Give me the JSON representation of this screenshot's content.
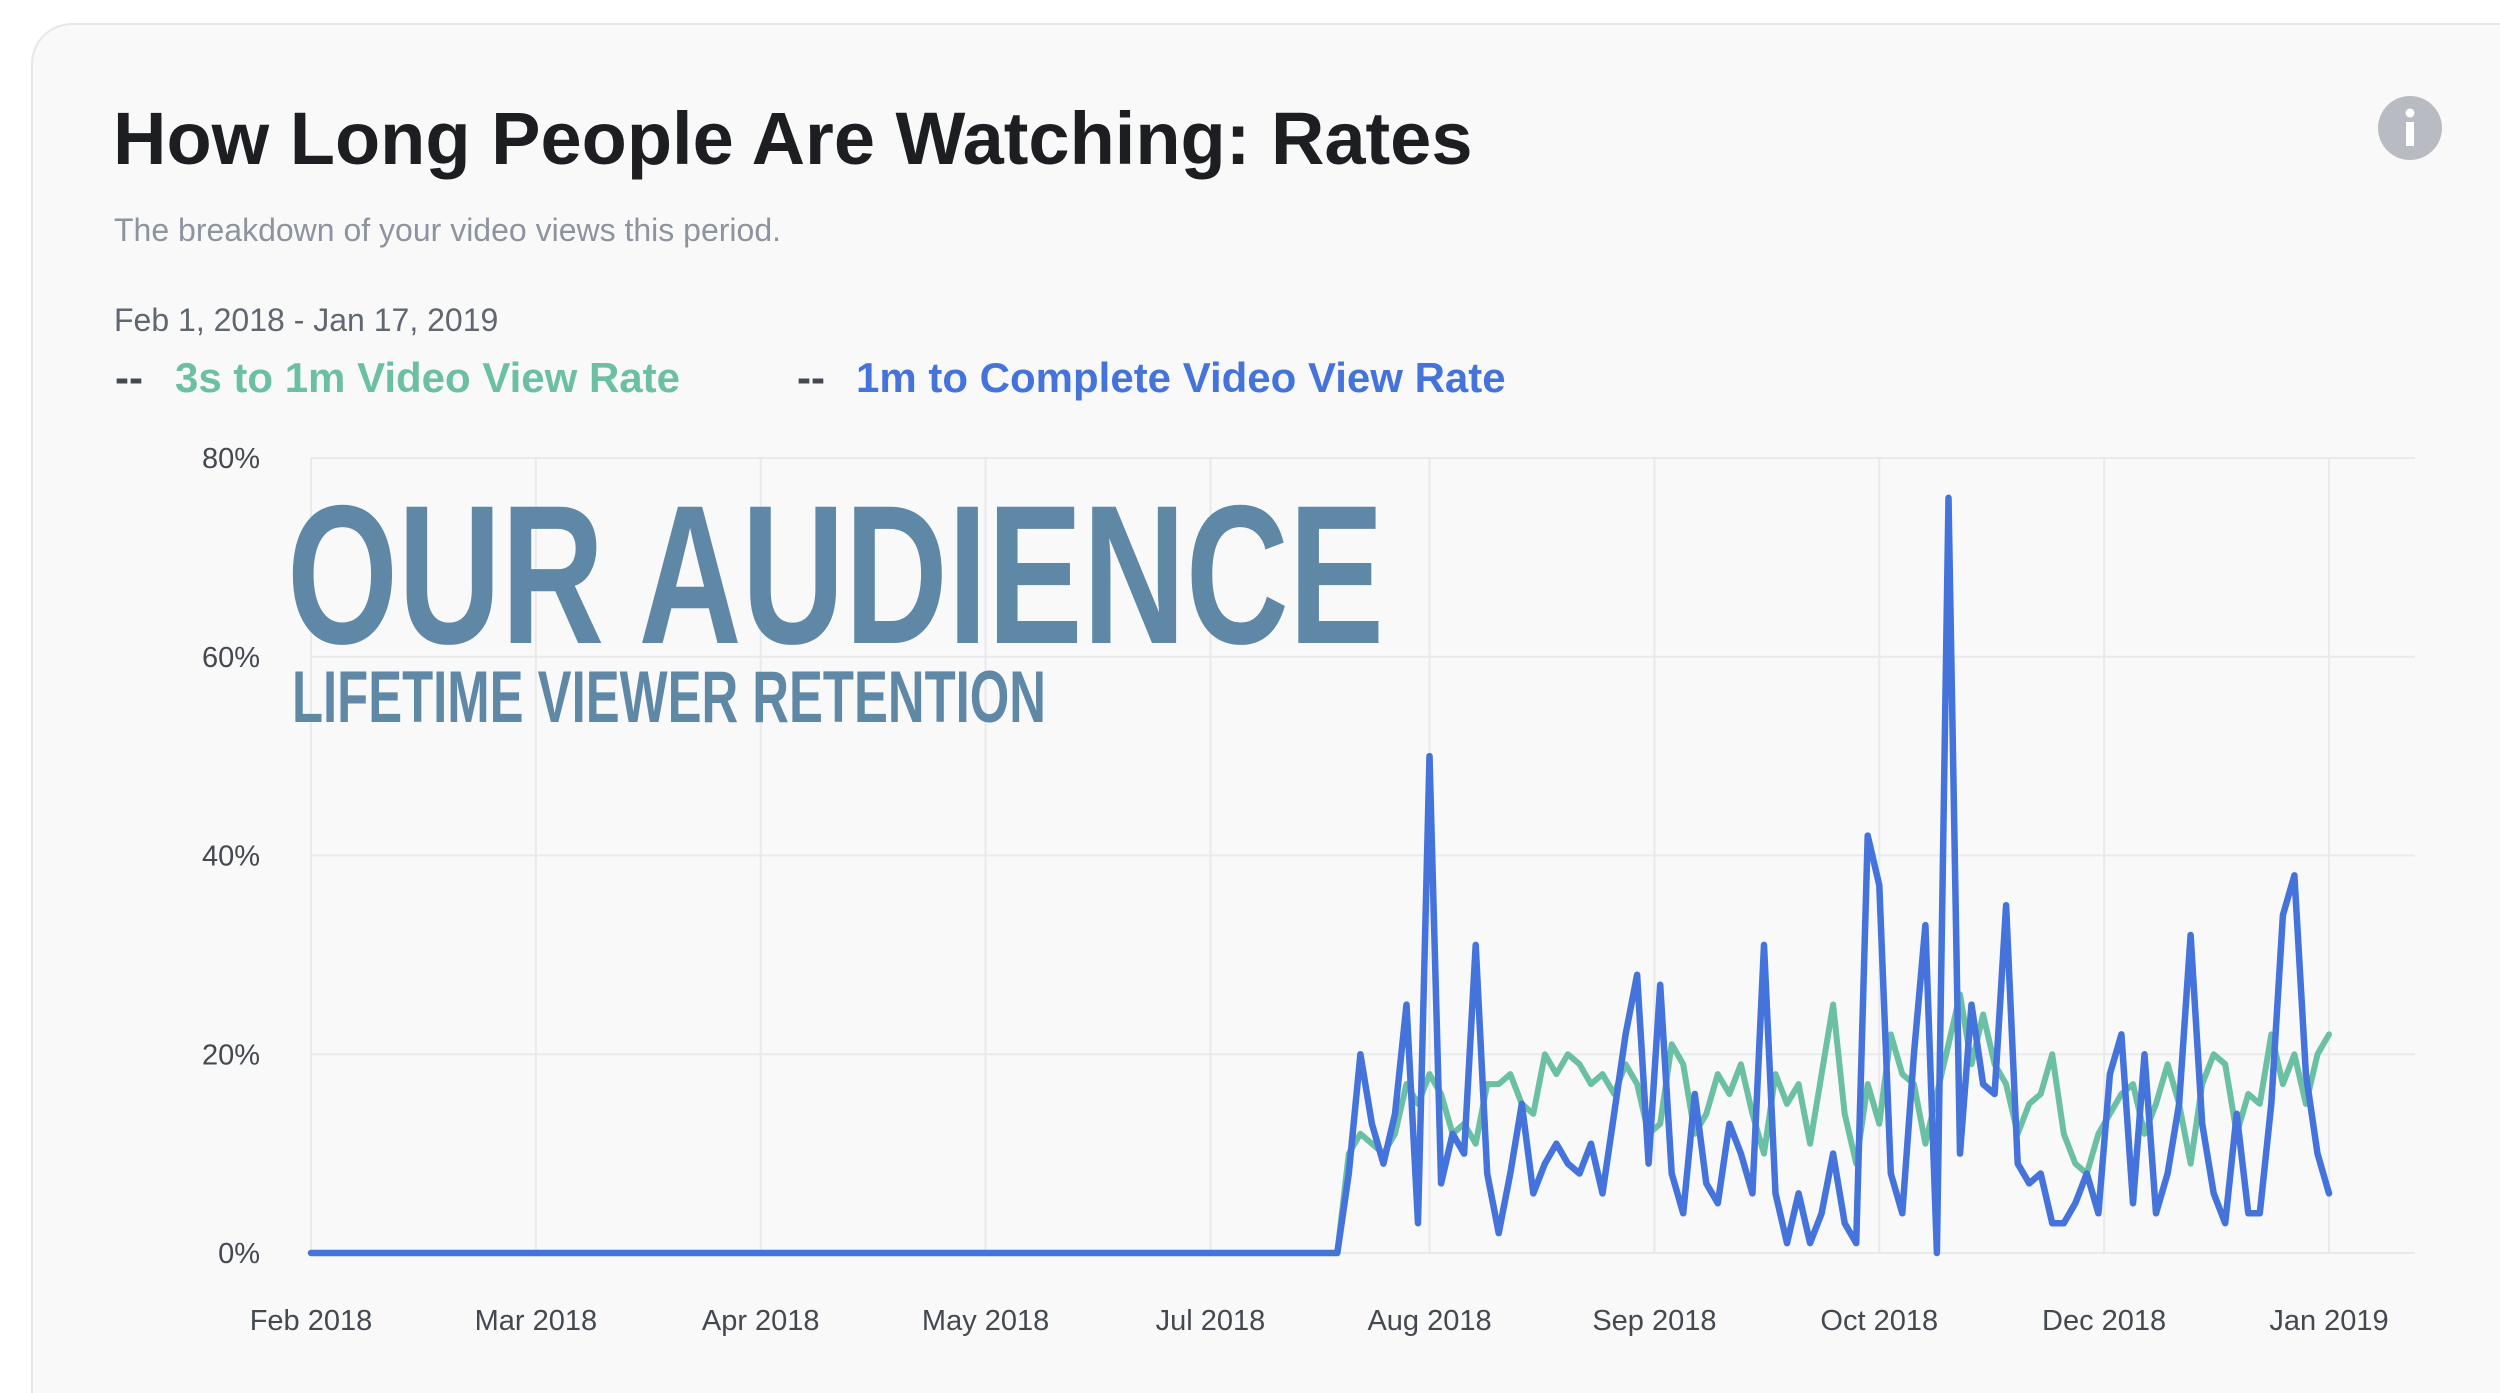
{
  "chart_data": {
    "type": "line",
    "title": "How Long People Are Watching: Rates",
    "subtitle": "The breakdown of your video views this period.",
    "date_range": "Feb 1, 2018 - Jan 17, 2019",
    "legend_marker": "--",
    "annotations": [
      "OUR AUDIENCE",
      "LIFETIME VIEWER RETENTION"
    ],
    "x": [
      0,
      178,
      180,
      182,
      184,
      186,
      188,
      190,
      192,
      194,
      196,
      198,
      200,
      202,
      204,
      206,
      208,
      210,
      212,
      214,
      216,
      218,
      220,
      222,
      224,
      226,
      228,
      230,
      232,
      234,
      236,
      238,
      240,
      242,
      244,
      246,
      248,
      250,
      252,
      254,
      256,
      258,
      260,
      262,
      264,
      266,
      268,
      270,
      272,
      274,
      276,
      278,
      280,
      282,
      284,
      286,
      288,
      290,
      292,
      294,
      296,
      298,
      300,
      302,
      304,
      306,
      308,
      310,
      312,
      314,
      316,
      318,
      320,
      322,
      324,
      326,
      328,
      330,
      332,
      334,
      336,
      338,
      340,
      342,
      344,
      346,
      348,
      350
    ],
    "series": [
      {
        "name": "3s to 1m Video View Rate",
        "color": "#6bbfa3",
        "values": [
          0,
          0,
          10,
          12,
          11,
          10,
          12,
          17,
          15,
          18,
          16,
          12,
          13,
          11,
          17,
          17,
          18,
          15,
          14,
          20,
          18,
          20,
          19,
          17,
          18,
          16,
          19,
          17,
          12,
          13,
          21,
          19,
          12,
          14,
          18,
          16,
          19,
          14,
          10,
          18,
          15,
          17,
          11,
          18,
          25,
          14,
          9,
          17,
          13,
          22,
          18,
          17,
          11,
          16,
          21,
          26,
          19,
          24,
          19,
          17,
          12,
          15,
          16,
          20,
          12,
          9,
          8,
          12,
          14,
          16,
          17,
          12,
          15,
          19,
          15,
          9,
          17,
          20,
          19,
          12,
          16,
          15,
          22,
          17,
          20,
          15,
          20,
          22
        ]
      },
      {
        "name": "1m to Complete Video View Rate",
        "color": "#4473db",
        "values": [
          0,
          0,
          8,
          20,
          13,
          9,
          14,
          25,
          3,
          50,
          7,
          12,
          10,
          31,
          8,
          2,
          8,
          15,
          6,
          9,
          11,
          9,
          8,
          11,
          6,
          14,
          22,
          28,
          9,
          27,
          8,
          4,
          16,
          7,
          5,
          13,
          10,
          6,
          31,
          6,
          1,
          6,
          1,
          4,
          10,
          3,
          1,
          42,
          37,
          8,
          4,
          20,
          33,
          0,
          76,
          10,
          25,
          17,
          16,
          35,
          9,
          7,
          8,
          3,
          3,
          5,
          8,
          4,
          18,
          22,
          5,
          20,
          4,
          8,
          15,
          32,
          13,
          6,
          3,
          14,
          4,
          4,
          15,
          34,
          38,
          18,
          10,
          6
        ]
      }
    ],
    "xlim": [
      0,
      350
    ],
    "xticks": [
      {
        "value": 0,
        "label": "Feb 2018"
      },
      {
        "value": 39,
        "label": "Mar 2018"
      },
      {
        "value": 78,
        "label": "Apr 2018"
      },
      {
        "value": 117,
        "label": "May 2018"
      },
      {
        "value": 156,
        "label": "Jul 2018"
      },
      {
        "value": 194,
        "label": "Aug 2018"
      },
      {
        "value": 233,
        "label": "Sep 2018"
      },
      {
        "value": 272,
        "label": "Oct 2018"
      },
      {
        "value": 311,
        "label": "Dec 2018"
      },
      {
        "value": 350,
        "label": "Jan 2019"
      }
    ],
    "ylim": [
      0,
      80
    ],
    "yticks": [
      {
        "value": 0,
        "label": "0%"
      },
      {
        "value": 20,
        "label": "20%"
      },
      {
        "value": 40,
        "label": "40%"
      },
      {
        "value": 60,
        "label": "60%"
      },
      {
        "value": 80,
        "label": "80%"
      }
    ],
    "grid": true
  }
}
